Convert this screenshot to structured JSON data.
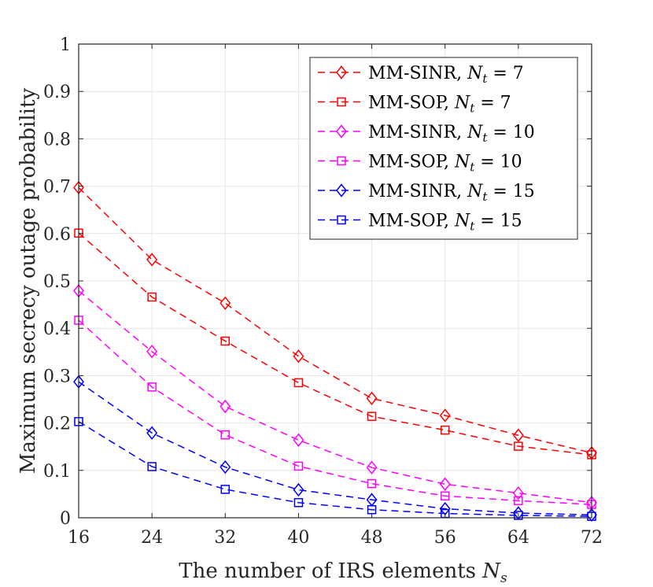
{
  "chart_data": {
    "type": "line",
    "title": "",
    "xlabel": "The number of IRS elements",
    "xlabel_symbol": "N",
    "xlabel_subscript": "s",
    "ylabel": "Maximum secrecy outage probability",
    "x": [
      16,
      24,
      32,
      40,
      48,
      56,
      64,
      72
    ],
    "xlim": [
      16,
      72
    ],
    "ylim": [
      0,
      1
    ],
    "xticks": [
      "16",
      "24",
      "32",
      "40",
      "48",
      "56",
      "64",
      "72"
    ],
    "yticks": [
      "0",
      "0.1",
      "0.2",
      "0.3",
      "0.4",
      "0.5",
      "0.6",
      "0.7",
      "0.8",
      "0.9",
      "1"
    ],
    "grid": true,
    "legend_position": "top-right",
    "series": [
      {
        "name": "MM-SINR, N_t = 7",
        "label_main": "MM-SINR, ",
        "label_sym": "N",
        "label_sub": "t",
        "label_eq": " = 7",
        "color": "#ff0000",
        "marker": "diamond",
        "values": [
          0.697,
          0.545,
          0.453,
          0.341,
          0.252,
          0.216,
          0.174,
          0.137
        ]
      },
      {
        "name": "MM-SOP, N_t = 7",
        "label_main": "MM-SOP, ",
        "label_sym": "N",
        "label_sub": "t",
        "label_eq": " = 7",
        "color": "#ff0000",
        "marker": "square",
        "values": [
          0.601,
          0.466,
          0.373,
          0.285,
          0.214,
          0.185,
          0.151,
          0.133
        ]
      },
      {
        "name": "MM-SINR, N_t = 10",
        "label_main": "MM-SINR, ",
        "label_sym": "N",
        "label_sub": "t",
        "label_eq": " = 10",
        "color": "#ff00ff",
        "marker": "diamond",
        "values": [
          0.479,
          0.351,
          0.235,
          0.164,
          0.106,
          0.071,
          0.052,
          0.032
        ]
      },
      {
        "name": "MM-SOP, N_t = 10",
        "label_main": "MM-SOP, ",
        "label_sym": "N",
        "label_sub": "t",
        "label_eq": " = 10",
        "color": "#ff00ff",
        "marker": "square",
        "values": [
          0.417,
          0.276,
          0.175,
          0.109,
          0.072,
          0.046,
          0.036,
          0.028
        ]
      },
      {
        "name": "MM-SINR, N_t = 15",
        "label_main": "MM-SINR, ",
        "label_sym": "N",
        "label_sub": "t",
        "label_eq": " = 15",
        "color": "#0000ff",
        "marker": "diamond",
        "values": [
          0.287,
          0.179,
          0.107,
          0.059,
          0.038,
          0.019,
          0.01,
          0.006
        ]
      },
      {
        "name": "MM-SOP, N_t = 15",
        "label_main": "MM-SOP, ",
        "label_sym": "N",
        "label_sub": "t",
        "label_eq": " = 15",
        "color": "#0000ff",
        "marker": "square",
        "values": [
          0.203,
          0.108,
          0.06,
          0.032,
          0.017,
          0.009,
          0.005,
          0.003
        ]
      }
    ]
  }
}
